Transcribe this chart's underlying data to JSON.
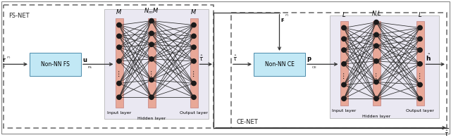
{
  "fig_width": 6.4,
  "fig_height": 1.99,
  "dpi": 100,
  "layer_color": "#e8a898",
  "nonnn_box_color": "#c2e8f5",
  "node_color": "#1a1a1a",
  "arrow_color": "#333333",
  "line_color": "#2a2a2a",
  "nn_bg_color": "#eae8f2",
  "fs_net_label": "FS-NET",
  "ce_net_label": "CE-NET",
  "fs_nonnn_label": "Non-NN FS",
  "ce_nonnn_label": "Non-NN CE",
  "fs_input_label": "Input layer",
  "fs_hidden_label": "Hidden layer",
  "fs_output_label": "Output layer",
  "ce_input_label": "Input layer",
  "ce_hidden_label": "Hidden layer",
  "ce_output_label": "Output layer"
}
